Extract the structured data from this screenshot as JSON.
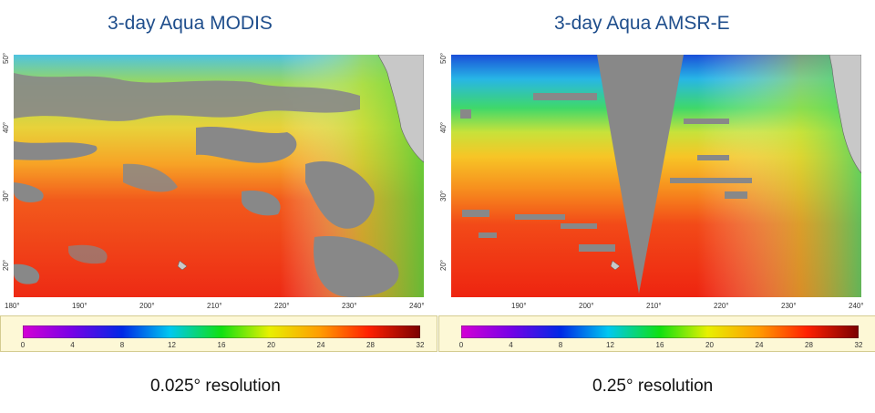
{
  "panels": [
    {
      "title": "3-day Aqua MODIS",
      "resolution": "0.025° resolution",
      "x_ticks": [
        "180°",
        "190°",
        "200°",
        "210°",
        "220°",
        "230°",
        "240°"
      ],
      "y_ticks": [
        "50°",
        "40°",
        "30°",
        "20°"
      ],
      "colorbar_ticks": [
        "0",
        "4",
        "8",
        "12",
        "16",
        "20",
        "24",
        "28",
        "32"
      ]
    },
    {
      "title": "3-day Aqua AMSR-E",
      "resolution": "0.25° resolution",
      "x_ticks": [
        "190°",
        "200°",
        "210°",
        "220°",
        "230°",
        "240°"
      ],
      "y_ticks": [
        "50°",
        "40°",
        "30°",
        "20°"
      ],
      "colorbar_ticks": [
        "0",
        "4",
        "8",
        "12",
        "16",
        "20",
        "24",
        "28",
        "32"
      ]
    }
  ],
  "colors": {
    "title": "#1f4e8c",
    "land": "#c8c8c8",
    "no_data": "#888888",
    "colorbar_panel": "#fdf8d6"
  }
}
